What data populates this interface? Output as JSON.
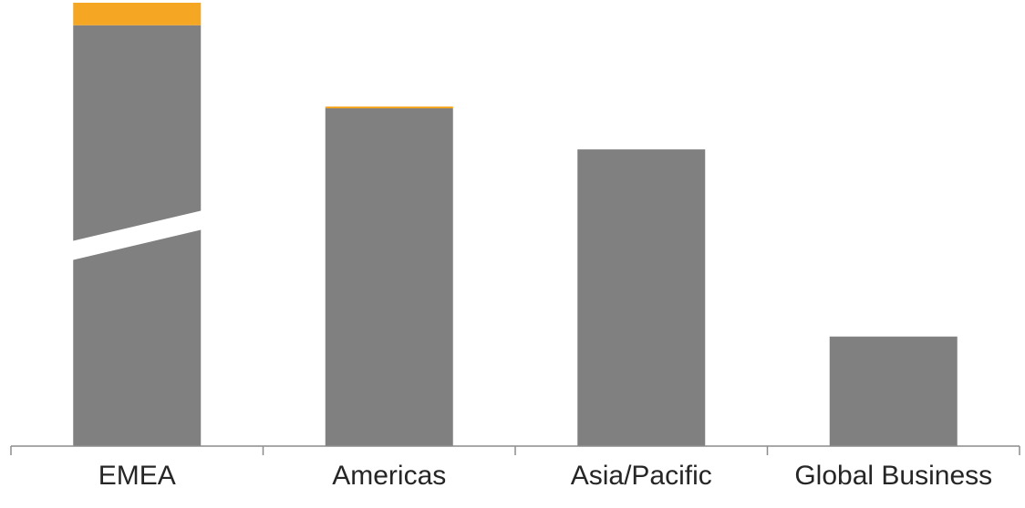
{
  "chart_data": {
    "type": "bar",
    "stacked": true,
    "axis_break": {
      "category": "EMEA",
      "shown": true
    },
    "categories": [
      "EMEA",
      "Americas",
      "Asia/Pacific",
      "Global Business"
    ],
    "series": [
      {
        "values": [
          1000,
          370,
          325,
          120
        ]
      },
      {
        "values": [
          13,
          2,
          0,
          0
        ]
      }
    ],
    "colors": [
      "#808080",
      "#f5a623"
    ],
    "ylim": [
      0,
      1013
    ],
    "y_axis_visible": false,
    "gridlines": false,
    "legend": "none",
    "axis_color": "#8c8c8c",
    "label_color": "#262626"
  }
}
